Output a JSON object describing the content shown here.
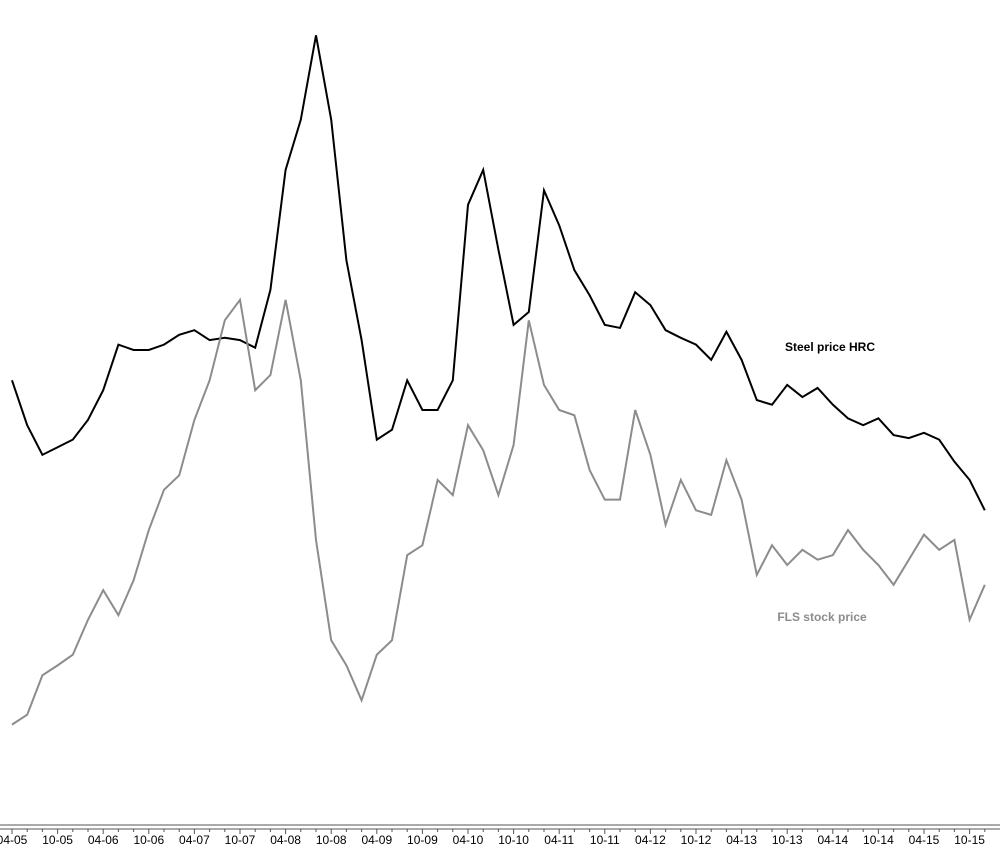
{
  "chart_data": {
    "type": "line",
    "categories": [
      "04-05",
      null,
      null,
      "10-05",
      null,
      null,
      "04-06",
      null,
      null,
      "10-06",
      null,
      null,
      "04-07",
      null,
      null,
      "10-07",
      null,
      null,
      "04-08",
      null,
      null,
      "10-08",
      null,
      null,
      "04-09",
      null,
      null,
      "10-09",
      null,
      null,
      "04-10",
      null,
      null,
      "10-10",
      null,
      null,
      "04-11",
      null,
      null,
      "10-11",
      null,
      null,
      "04-12",
      null,
      null,
      "10-12",
      null,
      null,
      "04-13",
      null,
      null,
      "10-13",
      null,
      null,
      "04-14",
      null,
      null,
      "10-14",
      null,
      null,
      "04-15",
      null,
      null,
      "10-15",
      null
    ],
    "series": [
      {
        "name": "Steel price HRC",
        "color": "#000000",
        "values": [
          53.9,
          48,
          44.1,
          45.1,
          46.1,
          48.7,
          52.6,
          58.6,
          57.9,
          57.9,
          58.6,
          59.9,
          60.5,
          59.2,
          59.5,
          59.2,
          58.2,
          65.8,
          81.6,
          88.2,
          99.3,
          88.2,
          69.7,
          59.2,
          46.1,
          47.4,
          53.9,
          50,
          50,
          53.9,
          77,
          81.6,
          71.1,
          61.2,
          62.9,
          78.9,
          74.3,
          68.4,
          65.1,
          61.2,
          60.8,
          65.5,
          63.8,
          60.5,
          59.5,
          58.6,
          56.6,
          60.3,
          56.6,
          51.3,
          50.7,
          53.3,
          51.7,
          52.9,
          50.7,
          48.9,
          48,
          48.9,
          46.7,
          46.3,
          47,
          46.1,
          43.2,
          40.8,
          36.8
        ]
      },
      {
        "name": "FLS stock price",
        "color": "#8c8c8c",
        "values": [
          8.6,
          9.9,
          15.1,
          16.4,
          17.8,
          22.4,
          26.3,
          23,
          27.6,
          34.2,
          39.5,
          41.4,
          48.7,
          53.9,
          61.8,
          64.5,
          52.6,
          54.6,
          64.5,
          53.9,
          32.9,
          19.7,
          16.4,
          11.8,
          17.8,
          19.7,
          30.9,
          32.2,
          40.8,
          38.8,
          48,
          44.7,
          38.8,
          45.4,
          61.8,
          53.3,
          50,
          49.3,
          42.1,
          38.2,
          38.2,
          50,
          44.1,
          34.9,
          40.8,
          36.8,
          36.2,
          43.4,
          38.2,
          28.3,
          32.2,
          29.6,
          31.6,
          30.3,
          30.9,
          34.2,
          31.6,
          29.6,
          27,
          30.3,
          33.6,
          31.6,
          32.9,
          22.4,
          27
        ]
      }
    ],
    "ylim": [
      0,
      100
    ]
  }
}
